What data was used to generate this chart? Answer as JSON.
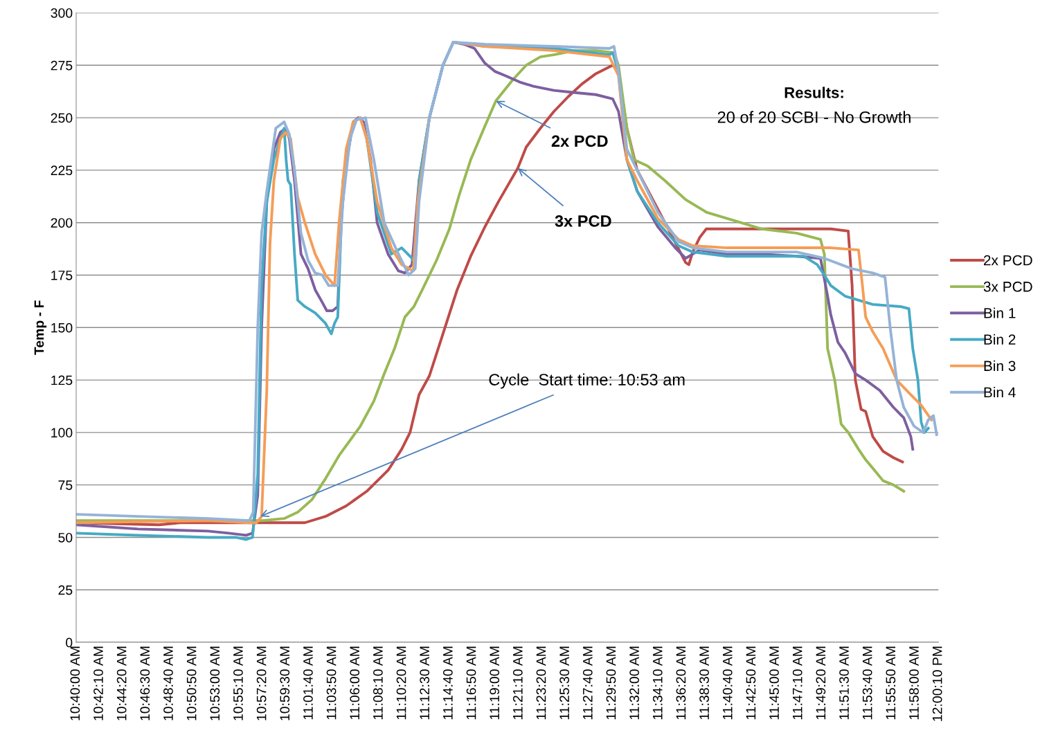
{
  "chart_data": {
    "type": "line",
    "ylabel": "Temp - F",
    "xlim": [
      10.66667,
      12.00278
    ],
    "ylim": [
      0,
      300
    ],
    "yticks": [
      0,
      25,
      50,
      75,
      100,
      125,
      150,
      175,
      200,
      225,
      250,
      275,
      300
    ],
    "xticks": [
      {
        "value": 10.66667,
        "label": "10:40:00 AM"
      },
      {
        "value": 10.70278,
        "label": "10:42:10 AM"
      },
      {
        "value": 10.73889,
        "label": "10:44:20 AM"
      },
      {
        "value": 10.775,
        "label": "10:46:30 AM"
      },
      {
        "value": 10.81111,
        "label": "10:48:40 AM"
      },
      {
        "value": 10.84722,
        "label": "10:50:50 AM"
      },
      {
        "value": 10.88333,
        "label": "10:53:00 AM"
      },
      {
        "value": 10.91944,
        "label": "10:55:10 AM"
      },
      {
        "value": 10.95556,
        "label": "10:57:20 AM"
      },
      {
        "value": 10.99167,
        "label": "10:59:30 AM"
      },
      {
        "value": 11.02778,
        "label": "11:01:40 AM"
      },
      {
        "value": 11.06389,
        "label": "11:03:50 AM"
      },
      {
        "value": 11.1,
        "label": "11:06:00 AM"
      },
      {
        "value": 11.13611,
        "label": "11:08:10 AM"
      },
      {
        "value": 11.17222,
        "label": "11:10:20 AM"
      },
      {
        "value": 11.20833,
        "label": "11:12:30 AM"
      },
      {
        "value": 11.24444,
        "label": "11:14:40 AM"
      },
      {
        "value": 11.28056,
        "label": "11:16:50 AM"
      },
      {
        "value": 11.31667,
        "label": "11:19:00 AM"
      },
      {
        "value": 11.35278,
        "label": "11:21:10 AM"
      },
      {
        "value": 11.38889,
        "label": "11:23:20 AM"
      },
      {
        "value": 11.425,
        "label": "11:25:30 AM"
      },
      {
        "value": 11.46111,
        "label": "11:27:40 AM"
      },
      {
        "value": 11.49722,
        "label": "11:29:50 AM"
      },
      {
        "value": 11.53333,
        "label": "11:32:00 AM"
      },
      {
        "value": 11.56944,
        "label": "11:34:10 AM"
      },
      {
        "value": 11.60556,
        "label": "11:36:20 AM"
      },
      {
        "value": 11.64167,
        "label": "11:38:30 AM"
      },
      {
        "value": 11.67778,
        "label": "11:40:40 AM"
      },
      {
        "value": 11.71389,
        "label": "11:42:50 AM"
      },
      {
        "value": 11.75,
        "label": "11:45:00 AM"
      },
      {
        "value": 11.78611,
        "label": "11:47:10 AM"
      },
      {
        "value": 11.82222,
        "label": "11:49:20 AM"
      },
      {
        "value": 11.85833,
        "label": "11:51:30 AM"
      },
      {
        "value": 11.89444,
        "label": "11:53:40 AM"
      },
      {
        "value": 11.93056,
        "label": "11:55:50 AM"
      },
      {
        "value": 11.96667,
        "label": "11:58:00 AM"
      },
      {
        "value": 12.00278,
        "label": "12:00:10 PM"
      }
    ],
    "grid": "y",
    "legend": "right",
    "marker": "none",
    "line_style": "solid",
    "annotations": [
      "Results:",
      "20 of 20 SCBI - No Growth",
      {
        "text": "2x PCD",
        "x": 11.317,
        "y": 258
      },
      {
        "text": "3x PCD",
        "x": 11.351,
        "y": 226
      },
      {
        "text": "Cycle  Start time: 10:53 am",
        "x": 10.952,
        "y": 60
      }
    ],
    "series": [
      {
        "name": "2x PCD",
        "color": "#be4b48",
        "x": [
          10.667,
          10.795,
          10.828,
          10.935,
          10.956,
          11.021,
          11.053,
          11.085,
          11.117,
          11.15,
          11.171,
          11.184,
          11.198,
          11.214,
          11.235,
          11.257,
          11.278,
          11.3,
          11.321,
          11.351,
          11.364,
          11.386,
          11.407,
          11.429,
          11.45,
          11.472,
          11.498,
          11.507,
          11.52,
          11.536,
          11.579,
          11.611,
          11.616,
          11.622,
          11.633,
          11.643,
          11.729,
          11.836,
          11.863,
          11.869,
          11.874,
          11.883,
          11.89,
          11.901,
          11.917,
          11.933,
          11.947
        ],
        "values": [
          57,
          56,
          57,
          57,
          57,
          57,
          60,
          65,
          72,
          82,
          92,
          100,
          118,
          127,
          147,
          168,
          184,
          198,
          210,
          226,
          236,
          245,
          253,
          260,
          266,
          271,
          275,
          272,
          245,
          225,
          200,
          181,
          180,
          186,
          193,
          197,
          197,
          197,
          196,
          170,
          125,
          111,
          110,
          98,
          91,
          88,
          86
        ]
      },
      {
        "name": "3x PCD",
        "color": "#98b954",
        "x": [
          10.667,
          10.935,
          10.956,
          10.989,
          11.01,
          11.032,
          11.053,
          11.074,
          11.107,
          11.128,
          11.144,
          11.16,
          11.176,
          11.19,
          11.203,
          11.225,
          11.245,
          11.26,
          11.278,
          11.3,
          11.317,
          11.343,
          11.364,
          11.386,
          11.407,
          11.439,
          11.472,
          11.5,
          11.507,
          11.52,
          11.531,
          11.552,
          11.579,
          11.611,
          11.643,
          11.686,
          11.729,
          11.783,
          11.82,
          11.826,
          11.831,
          11.842,
          11.852,
          11.863,
          11.879,
          11.89,
          11.901,
          11.917,
          11.933,
          11.949
        ],
        "values": [
          58,
          58,
          58,
          59,
          62,
          68,
          78,
          89,
          103,
          115,
          128,
          140,
          155,
          160,
          168,
          182,
          197,
          213,
          230,
          246,
          258,
          268,
          275,
          279,
          280,
          282,
          282,
          281,
          275,
          245,
          230,
          227,
          220,
          211,
          205,
          201,
          197,
          195,
          192,
          185,
          140,
          125,
          104,
          100,
          92,
          87,
          83,
          77,
          75,
          72
        ]
      },
      {
        "name": "Bin 1",
        "color": "#7d5fa0",
        "x": [
          10.667,
          10.763,
          10.871,
          10.903,
          10.93,
          10.94,
          10.948,
          10.954,
          10.962,
          10.973,
          10.983,
          10.991,
          10.997,
          11.005,
          11.015,
          11.026,
          11.037,
          11.048,
          11.055,
          11.064,
          11.072,
          11.077,
          11.085,
          11.096,
          11.104,
          11.112,
          11.123,
          11.133,
          11.15,
          11.166,
          11.176,
          11.187,
          11.198,
          11.214,
          11.235,
          11.251,
          11.268,
          11.284,
          11.3,
          11.316,
          11.332,
          11.354,
          11.375,
          11.407,
          11.439,
          11.472,
          11.498,
          11.507,
          11.52,
          11.536,
          11.568,
          11.595,
          11.611,
          11.622,
          11.633,
          11.675,
          11.729,
          11.783,
          11.82,
          11.831,
          11.836,
          11.847,
          11.858,
          11.874,
          11.89,
          11.912,
          11.933,
          11.949,
          11.96,
          11.963
        ],
        "values": [
          56,
          54,
          53,
          52,
          51,
          52,
          70,
          150,
          210,
          235,
          243,
          245,
          240,
          220,
          185,
          178,
          168,
          162,
          158,
          158,
          160,
          200,
          228,
          248,
          250,
          248,
          230,
          200,
          185,
          177,
          176,
          180,
          220,
          250,
          275,
          286,
          285,
          283,
          276,
          272,
          270,
          267,
          265,
          263,
          262,
          261,
          259,
          253,
          230,
          215,
          198,
          188,
          183,
          185,
          187,
          185,
          185,
          184,
          183,
          165,
          156,
          143,
          138,
          128,
          125,
          120,
          112,
          107,
          98,
          92
        ]
      },
      {
        "name": "Bin 2",
        "color": "#46aac4",
        "x": [
          10.667,
          10.763,
          10.871,
          10.914,
          10.93,
          10.94,
          10.948,
          10.954,
          10.962,
          10.973,
          10.983,
          10.989,
          10.992,
          10.995,
          10.999,
          11.005,
          11.01,
          11.021,
          11.037,
          11.053,
          11.062,
          11.067,
          11.072,
          11.08,
          11.096,
          11.107,
          11.117,
          11.133,
          11.155,
          11.171,
          11.187,
          11.192,
          11.198,
          11.214,
          11.235,
          11.251,
          11.3,
          11.407,
          11.493,
          11.498,
          11.507,
          11.52,
          11.536,
          11.568,
          11.6,
          11.622,
          11.675,
          11.729,
          11.794,
          11.815,
          11.826,
          11.836,
          11.858,
          11.901,
          11.944,
          11.957,
          11.963,
          11.971,
          11.976,
          11.981,
          11.987
        ],
        "values": [
          52,
          51,
          50,
          50,
          49,
          50,
          80,
          170,
          210,
          230,
          240,
          245,
          230,
          220,
          218,
          185,
          163,
          160,
          157,
          152,
          147,
          152,
          155,
          220,
          248,
          250,
          240,
          205,
          185,
          188,
          183,
          180,
          220,
          250,
          275,
          286,
          284,
          283,
          280,
          281,
          272,
          230,
          215,
          200,
          189,
          186,
          184,
          184,
          184,
          180,
          175,
          170,
          165,
          161,
          160,
          159,
          140,
          125,
          105,
          100,
          102
        ]
      },
      {
        "name": "Bin 3",
        "color": "#f59d56",
        "x": [
          10.667,
          10.871,
          10.935,
          10.946,
          10.954,
          10.962,
          10.967,
          10.973,
          10.983,
          10.991,
          10.999,
          11.01,
          11.021,
          11.037,
          11.053,
          11.067,
          11.074,
          11.085,
          11.096,
          11.107,
          11.117,
          11.133,
          11.155,
          11.171,
          11.189,
          11.196,
          11.214,
          11.235,
          11.251,
          11.3,
          11.407,
          11.493,
          11.507,
          11.52,
          11.536,
          11.568,
          11.6,
          11.622,
          11.675,
          11.729,
          11.836,
          11.879,
          11.885,
          11.89,
          11.901,
          11.917,
          11.938,
          11.96,
          11.976,
          11.992
        ],
        "values": [
          57,
          58,
          57,
          57,
          60,
          120,
          190,
          220,
          240,
          243,
          240,
          212,
          200,
          185,
          175,
          170,
          200,
          235,
          248,
          250,
          240,
          210,
          188,
          180,
          177,
          210,
          250,
          null,
          286,
          284,
          282,
          279,
          270,
          230,
          220,
          202,
          192,
          189,
          188,
          188,
          188,
          187,
          170,
          155,
          148,
          140,
          125,
          118,
          113,
          106
        ]
      },
      {
        "name": "Bin 4",
        "color": "#95b3d7",
        "x": [
          10.667,
          10.763,
          10.871,
          10.935,
          10.941,
          10.948,
          10.954,
          10.962,
          10.969,
          10.976,
          10.989,
          10.997,
          11.005,
          11.015,
          11.026,
          11.037,
          11.048,
          11.058,
          11.072,
          11.08,
          11.091,
          11.101,
          11.115,
          11.128,
          11.144,
          11.166,
          11.182,
          11.192,
          11.198,
          11.214,
          11.235,
          11.251,
          11.3,
          11.407,
          11.493,
          11.5,
          11.507,
          11.52,
          11.536,
          11.568,
          11.6,
          11.622,
          11.675,
          11.729,
          11.783,
          11.826,
          11.869,
          11.901,
          11.92,
          11.928,
          11.938,
          11.949,
          11.965,
          11.979,
          11.987,
          11.995,
          12.0
        ],
        "values": [
          61,
          60,
          59,
          58,
          62,
          150,
          195,
          215,
          230,
          245,
          248,
          242,
          225,
          195,
          182,
          176,
          175,
          170,
          170,
          210,
          240,
          249,
          250,
          230,
          200,
          185,
          175,
          178,
          210,
          250,
          275,
          286,
          285,
          284,
          283,
          284,
          272,
          235,
          225,
          205,
          191,
          188,
          186,
          186,
          186,
          183,
          178,
          176,
          174,
          150,
          125,
          112,
          103,
          100,
          106,
          108,
          99
        ]
      }
    ]
  }
}
